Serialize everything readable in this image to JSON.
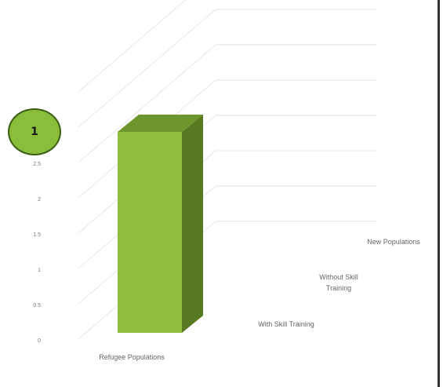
{
  "badge": {
    "label": "1"
  },
  "chart_data": {
    "type": "bar",
    "style": "3d-column",
    "categories": [
      "Refugee Populations"
    ],
    "depth_categories": [
      "With Skill Training",
      "Without Skill Training",
      "New Populations"
    ],
    "series": [
      {
        "values": [
          3
        ]
      }
    ],
    "y_ticks": [
      "0",
      "0.5",
      "1",
      "1.5",
      "2",
      "2.5"
    ],
    "ylim": [
      0,
      3.5
    ],
    "grid": true,
    "colors": {
      "bar_front": "#8dbe3c",
      "bar_top": "#6d962c",
      "bar_side": "#58791f",
      "grid": "#e6e6e6",
      "tick_text": "#777777",
      "badge_fill": "#8bbd3c",
      "badge_border": "#3d5e14"
    }
  }
}
